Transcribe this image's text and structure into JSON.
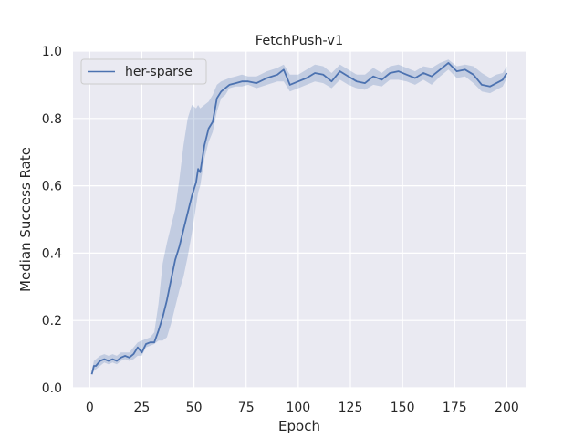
{
  "chart_data": {
    "type": "line",
    "title": "FetchPush-v1",
    "xlabel": "Epoch",
    "ylabel": "Median Success Rate",
    "xlim": [
      -8,
      209
    ],
    "ylim": [
      0.0,
      1.0
    ],
    "xticks": [
      0,
      25,
      50,
      75,
      100,
      125,
      150,
      175,
      200
    ],
    "yticks": [
      0.0,
      0.2,
      0.4,
      0.6,
      0.8,
      1.0
    ],
    "xtick_labels": [
      "0",
      "25",
      "50",
      "75",
      "100",
      "125",
      "150",
      "175",
      "200"
    ],
    "ytick_labels": [
      "0.0",
      "0.2",
      "0.4",
      "0.6",
      "0.8",
      "1.0"
    ],
    "grid": true,
    "legend_position": "top-left",
    "series": [
      {
        "name": "her-sparse",
        "color": "#4c72b0",
        "band_color": "#4c72b0",
        "x": [
          1,
          2,
          3,
          5,
          7,
          9,
          11,
          13,
          15,
          17,
          19,
          21,
          23,
          25,
          27,
          29,
          31,
          33,
          35,
          37,
          39,
          41,
          43,
          45,
          47,
          49,
          51,
          52,
          53,
          55,
          57,
          59,
          61,
          63,
          65,
          67,
          70,
          73,
          76,
          80,
          85,
          90,
          93,
          96,
          100,
          104,
          108,
          112,
          116,
          120,
          124,
          128,
          132,
          136,
          140,
          144,
          148,
          152,
          156,
          160,
          164,
          168,
          172,
          176,
          180,
          184,
          188,
          192,
          195,
          198,
          200
        ],
        "y": [
          0.04,
          0.065,
          0.065,
          0.08,
          0.085,
          0.08,
          0.085,
          0.08,
          0.09,
          0.095,
          0.09,
          0.1,
          0.12,
          0.105,
          0.13,
          0.135,
          0.135,
          0.17,
          0.21,
          0.26,
          0.32,
          0.38,
          0.42,
          0.47,
          0.52,
          0.57,
          0.61,
          0.65,
          0.64,
          0.72,
          0.77,
          0.79,
          0.86,
          0.88,
          0.89,
          0.9,
          0.905,
          0.91,
          0.91,
          0.905,
          0.92,
          0.93,
          0.945,
          0.9,
          0.91,
          0.92,
          0.935,
          0.93,
          0.91,
          0.94,
          0.925,
          0.91,
          0.905,
          0.925,
          0.915,
          0.935,
          0.94,
          0.93,
          0.92,
          0.935,
          0.925,
          0.945,
          0.965,
          0.94,
          0.945,
          0.93,
          0.9,
          0.895,
          0.905,
          0.915,
          0.935
        ],
        "y_low": [
          0.04,
          0.05,
          0.055,
          0.065,
          0.075,
          0.07,
          0.075,
          0.07,
          0.08,
          0.085,
          0.08,
          0.085,
          0.095,
          0.095,
          0.12,
          0.125,
          0.13,
          0.14,
          0.14,
          0.15,
          0.19,
          0.24,
          0.29,
          0.33,
          0.39,
          0.46,
          0.54,
          0.58,
          0.6,
          0.68,
          0.73,
          0.76,
          0.82,
          0.86,
          0.87,
          0.89,
          0.895,
          0.895,
          0.9,
          0.89,
          0.9,
          0.91,
          0.91,
          0.88,
          0.89,
          0.9,
          0.91,
          0.905,
          0.89,
          0.915,
          0.9,
          0.89,
          0.885,
          0.9,
          0.895,
          0.915,
          0.915,
          0.91,
          0.9,
          0.915,
          0.9,
          0.925,
          0.945,
          0.92,
          0.925,
          0.905,
          0.88,
          0.875,
          0.885,
          0.895,
          0.92
        ],
        "y_high": [
          0.05,
          0.08,
          0.085,
          0.095,
          0.1,
          0.095,
          0.1,
          0.095,
          0.105,
          0.105,
          0.105,
          0.12,
          0.135,
          0.14,
          0.145,
          0.15,
          0.165,
          0.25,
          0.37,
          0.43,
          0.48,
          0.53,
          0.62,
          0.72,
          0.8,
          0.84,
          0.83,
          0.84,
          0.83,
          0.84,
          0.85,
          0.87,
          0.9,
          0.91,
          0.915,
          0.92,
          0.925,
          0.93,
          0.925,
          0.925,
          0.94,
          0.95,
          0.96,
          0.93,
          0.93,
          0.945,
          0.96,
          0.955,
          0.935,
          0.96,
          0.945,
          0.93,
          0.93,
          0.95,
          0.935,
          0.955,
          0.96,
          0.95,
          0.94,
          0.955,
          0.95,
          0.965,
          0.975,
          0.955,
          0.96,
          0.955,
          0.935,
          0.92,
          0.93,
          0.935,
          0.955
        ]
      }
    ]
  }
}
